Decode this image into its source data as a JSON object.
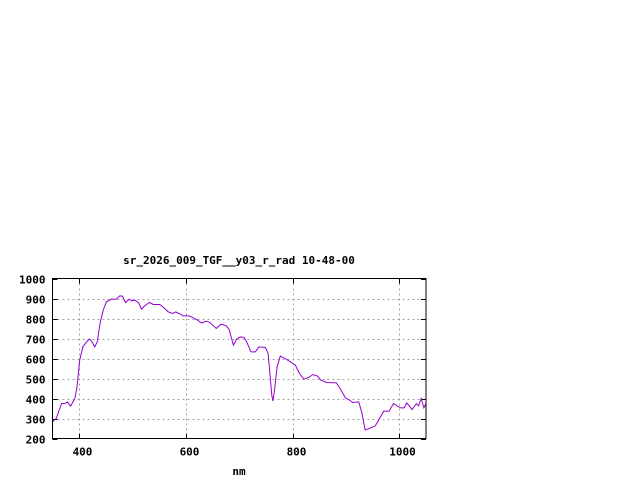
{
  "chart_data": {
    "type": "line",
    "title": "sr_2026_009_TGF__y03_r_rad 10-48-00",
    "xlabel": "nm",
    "ylabel": "",
    "xlim": [
      350,
      1050
    ],
    "ylim": [
      200,
      1000
    ],
    "xticks": [
      400,
      600,
      800,
      1000
    ],
    "yticks": [
      200,
      300,
      400,
      500,
      600,
      700,
      800,
      900,
      1000
    ],
    "grid": true,
    "line_color": "#9400d3",
    "series": [
      {
        "x": [
          350,
          357,
          367,
          373,
          378,
          384,
          392,
          396,
          401,
          407,
          414,
          419,
          423,
          429,
          434,
          439,
          445,
          451,
          461,
          470,
          476,
          481,
          487,
          494,
          498,
          504,
          511,
          517,
          521,
          526,
          532,
          539,
          551,
          557,
          567,
          575,
          581,
          587,
          595,
          606,
          614,
          620,
          629,
          639,
          645,
          657,
          666,
          676,
          681,
          689,
          695,
          702,
          709,
          714,
          722,
          730,
          737,
          749,
          754,
          758,
          761,
          763,
          766,
          771,
          777,
          786,
          796,
          805,
          813,
          821,
          830,
          838,
          846,
          853,
          864,
          882,
          889,
          899,
          905,
          913,
          924,
          930,
          936,
          946,
          955,
          963,
          971,
          981,
          989,
          996,
          1003,
          1009,
          1014,
          1024,
          1032,
          1036,
          1041,
          1046,
          1050
        ],
        "y": [
          283,
          300,
          375,
          375,
          383,
          362,
          400,
          458,
          592,
          658,
          683,
          697,
          688,
          658,
          683,
          775,
          842,
          883,
          897,
          897,
          913,
          912,
          880,
          897,
          888,
          892,
          880,
          847,
          858,
          870,
          880,
          870,
          870,
          858,
          833,
          825,
          833,
          825,
          813,
          813,
          803,
          795,
          778,
          787,
          780,
          750,
          772,
          763,
          745,
          667,
          697,
          708,
          705,
          683,
          633,
          633,
          658,
          655,
          625,
          508,
          417,
          387,
          442,
          558,
          612,
          600,
          583,
          567,
          525,
          497,
          505,
          520,
          513,
          492,
          480,
          478,
          450,
          403,
          395,
          380,
          383,
          325,
          242,
          253,
          263,
          300,
          337,
          337,
          375,
          363,
          353,
          353,
          378,
          345,
          375,
          363,
          400,
          353,
          375
        ]
      }
    ]
  }
}
